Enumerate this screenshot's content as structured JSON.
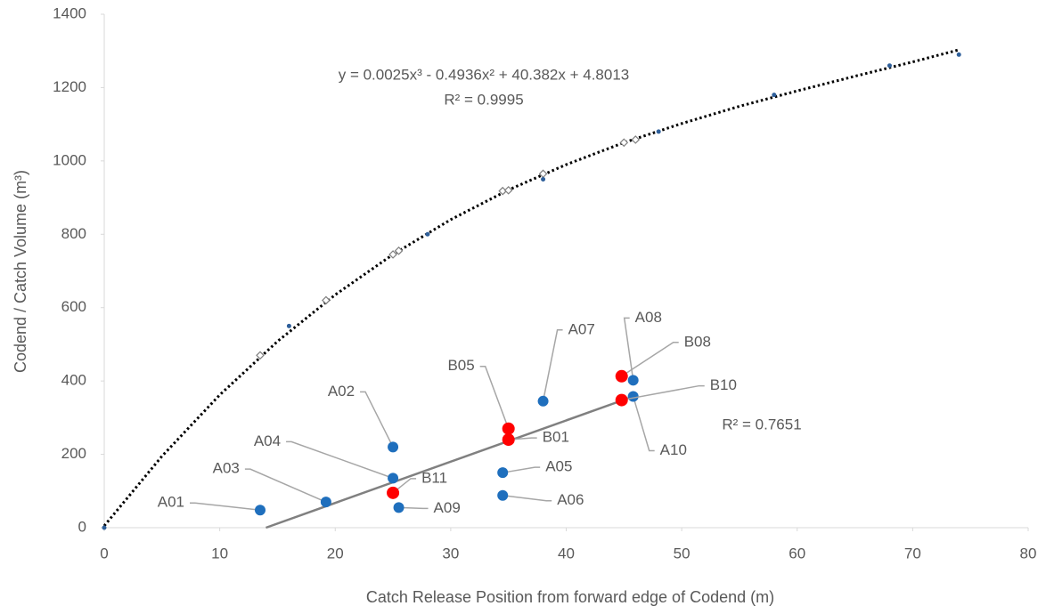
{
  "chart_data": {
    "type": "scatter",
    "x_label": "Catch Release Position from forward edge of Codend (m)",
    "y_label": "Codend / Catch Volume (m³)",
    "xlim": [
      0,
      80
    ],
    "xticks": [
      0,
      10,
      20,
      30,
      40,
      50,
      60,
      70,
      80
    ],
    "ylim": [
      0,
      1400
    ],
    "yticks": [
      0,
      200,
      400,
      600,
      800,
      1000,
      1200,
      1400
    ],
    "annotations": [
      "y = 0.0025x³ - 0.4936x² + 40.382x + 4.8013",
      "R² = 0.9995",
      "R² = 0.7651"
    ],
    "series": [
      {
        "marker": "line-dotted",
        "color": "#000000",
        "x": [
          0,
          5,
          10,
          15,
          20,
          25,
          30,
          35,
          40,
          45,
          50,
          55,
          60,
          65,
          70,
          74
        ],
        "values": [
          5,
          195,
          362,
          508,
          635,
          745,
          840,
          921,
          990,
          1050,
          1102,
          1149,
          1191,
          1231,
          1270,
          1303
        ]
      },
      {
        "marker": "line",
        "color": "#808080",
        "x": [
          14,
          46
        ],
        "values": [
          0,
          360
        ]
      },
      {
        "marker": "diamond",
        "color": "#7f7f7f",
        "x": [
          13.5,
          19.2,
          25,
          25.5,
          34.5,
          35,
          38,
          45,
          46
        ],
        "values": [
          470,
          620,
          745,
          755,
          918,
          920,
          965,
          1050,
          1058
        ]
      },
      {
        "marker": "dot",
        "color": "#2e5f9a",
        "x": [
          0,
          16,
          28,
          38,
          48,
          58,
          68,
          74
        ],
        "values": [
          0,
          550,
          800,
          950,
          1080,
          1180,
          1260,
          1290
        ]
      },
      {
        "marker": "big",
        "color": "#1f6fbd",
        "x": [
          13.5,
          25,
          19.2,
          25,
          34.5,
          34.5,
          38,
          45.8,
          25.5,
          45.8
        ],
        "values": [
          48,
          220,
          70,
          135,
          150,
          88,
          345,
          402,
          55,
          358
        ],
        "labels": [
          "A01",
          "A02",
          "A03",
          "A04",
          "A05",
          "A06",
          "A07",
          "A08",
          "A09",
          "A10"
        ]
      },
      {
        "marker": "big",
        "color": "#ff0000",
        "x": [
          35,
          35,
          25,
          44.8,
          44.8
        ],
        "values": [
          270,
          240,
          95,
          413,
          348
        ],
        "labels": [
          "B05",
          "B01",
          "B11",
          "B08",
          "B10"
        ]
      }
    ]
  }
}
